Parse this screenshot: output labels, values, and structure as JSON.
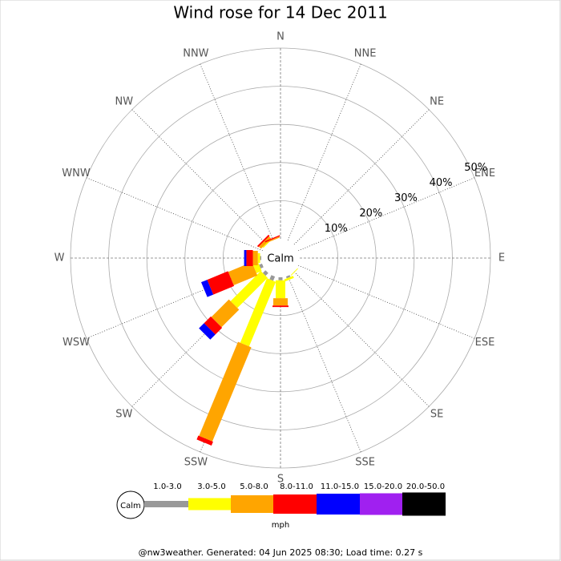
{
  "chart_data": {
    "type": "wind-rose",
    "title": "Wind rose for 14 Dec 2011",
    "categories": [
      "N",
      "NNE",
      "NE",
      "ENE",
      "E",
      "ESE",
      "SE",
      "SSE",
      "S",
      "SSW",
      "SW",
      "WSW",
      "W",
      "WNW",
      "NW",
      "NNW"
    ],
    "center_label": "Calm",
    "rlim": [
      0,
      50
    ],
    "rticks": [
      {
        "value": 10,
        "label": "10%"
      },
      {
        "value": 20,
        "label": "20%"
      },
      {
        "value": 30,
        "label": "30%"
      },
      {
        "value": 40,
        "label": "40%"
      },
      {
        "value": 50,
        "label": "50%"
      }
    ],
    "series": [
      {
        "name": "1.0-3.0",
        "color": "#999999",
        "values": [
          0,
          0,
          0,
          0,
          0,
          0,
          0,
          0.5,
          0.8,
          1.2,
          1.0,
          0.8,
          0.3,
          0,
          0,
          0
        ]
      },
      {
        "name": "3.0-5.0",
        "color": "#ffff00",
        "values": [
          0,
          0,
          0,
          0,
          0,
          0,
          0.2,
          0.6,
          4.7,
          18.3,
          11.2,
          1.5,
          0.6,
          0,
          0.3,
          0
        ]
      },
      {
        "name": "5.0-8.0",
        "color": "#ffa500",
        "values": [
          0,
          0,
          0,
          0,
          0,
          0,
          0,
          0,
          1.9,
          26.7,
          6.5,
          6.7,
          1.3,
          0,
          0.8,
          0.3
        ]
      },
      {
        "name": "8.0-11.0",
        "color": "#ff0000",
        "values": [
          0,
          0,
          0,
          0,
          0,
          0,
          0,
          0,
          0.4,
          1.1,
          2.5,
          5.9,
          1.7,
          0,
          0.4,
          0.3
        ]
      },
      {
        "name": "11.0-15.0",
        "color": "#0000ff",
        "values": [
          0,
          0,
          0,
          0,
          0,
          0,
          0,
          0,
          0,
          0,
          1.9,
          1.7,
          0.6,
          0,
          0,
          0
        ]
      },
      {
        "name": "15.0-20.0",
        "color": "#a020f0",
        "values": [
          0,
          0,
          0,
          0,
          0,
          0,
          0,
          0,
          0,
          0,
          0,
          0,
          0,
          0,
          0,
          0
        ]
      },
      {
        "name": "20.0-50.0",
        "color": "#000000",
        "values": [
          0,
          0,
          0,
          0,
          0,
          0,
          0,
          0,
          0,
          0,
          0,
          0,
          0,
          0,
          0,
          0
        ]
      }
    ],
    "legend_unit": "mph",
    "footer": "@nw3weather. Generated: 04 Jun 2025 08:30; Load time: 0.27 s"
  }
}
